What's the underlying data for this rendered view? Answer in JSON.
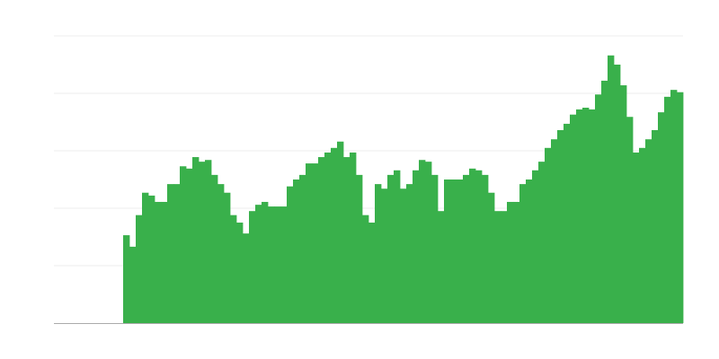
{
  "chart_data": {
    "type": "bar",
    "title": "",
    "xlabel": "",
    "ylabel": "",
    "ylim": [
      0,
      5
    ],
    "grid": true,
    "legend": "none",
    "colors": {
      "bar": "#39b04b",
      "grid": "#eeeeee",
      "axis": "#aaaaaa"
    },
    "values": [
      0,
      0,
      0,
      0,
      0,
      0,
      0,
      0,
      0,
      0,
      0,
      1.53,
      1.33,
      1.88,
      2.27,
      2.22,
      2.11,
      2.11,
      2.42,
      2.42,
      2.73,
      2.69,
      2.89,
      2.81,
      2.84,
      2.58,
      2.42,
      2.27,
      1.88,
      1.75,
      1.56,
      1.95,
      2.06,
      2.11,
      2.03,
      2.03,
      2.03,
      2.38,
      2.5,
      2.58,
      2.78,
      2.78,
      2.89,
      2.97,
      3.05,
      3.16,
      2.89,
      2.97,
      2.58,
      1.88,
      1.75,
      2.42,
      2.34,
      2.58,
      2.66,
      2.34,
      2.42,
      2.66,
      2.84,
      2.81,
      2.58,
      1.95,
      2.5,
      2.5,
      2.5,
      2.58,
      2.69,
      2.66,
      2.58,
      2.27,
      1.95,
      1.95,
      2.11,
      2.11,
      2.42,
      2.5,
      2.66,
      2.81,
      3.05,
      3.2,
      3.36,
      3.47,
      3.63,
      3.72,
      3.75,
      3.72,
      3.98,
      4.22,
      4.66,
      4.5,
      4.14,
      3.59,
      2.97,
      3.05,
      3.2,
      3.36,
      3.67,
      3.94,
      4.06,
      4.02
    ]
  }
}
